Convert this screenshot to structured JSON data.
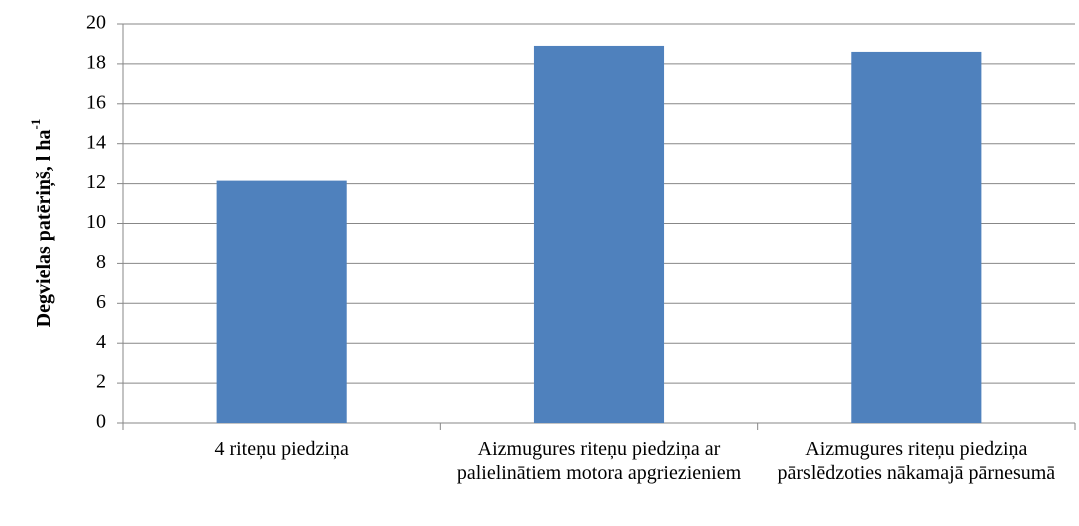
{
  "chart_data": {
    "type": "bar",
    "ylabel": "Degvielas patēriņš, l ha",
    "ylabel_sup": "-1",
    "categories": [
      "4 riteņu piedziņa",
      "Aizmugures riteņu piedziņa ar palielinātiem motora apgriezieniem",
      "Aizmugures riteņu piedziņa pārslēdzoties nākamajā pārnesumā"
    ],
    "values": [
      12.15,
      18.9,
      18.6
    ],
    "color": "#4f81bd",
    "ylim": [
      0,
      20
    ],
    "yticks": [
      0,
      2,
      4,
      6,
      8,
      10,
      12,
      14,
      16,
      18,
      20
    ],
    "grid": true
  }
}
